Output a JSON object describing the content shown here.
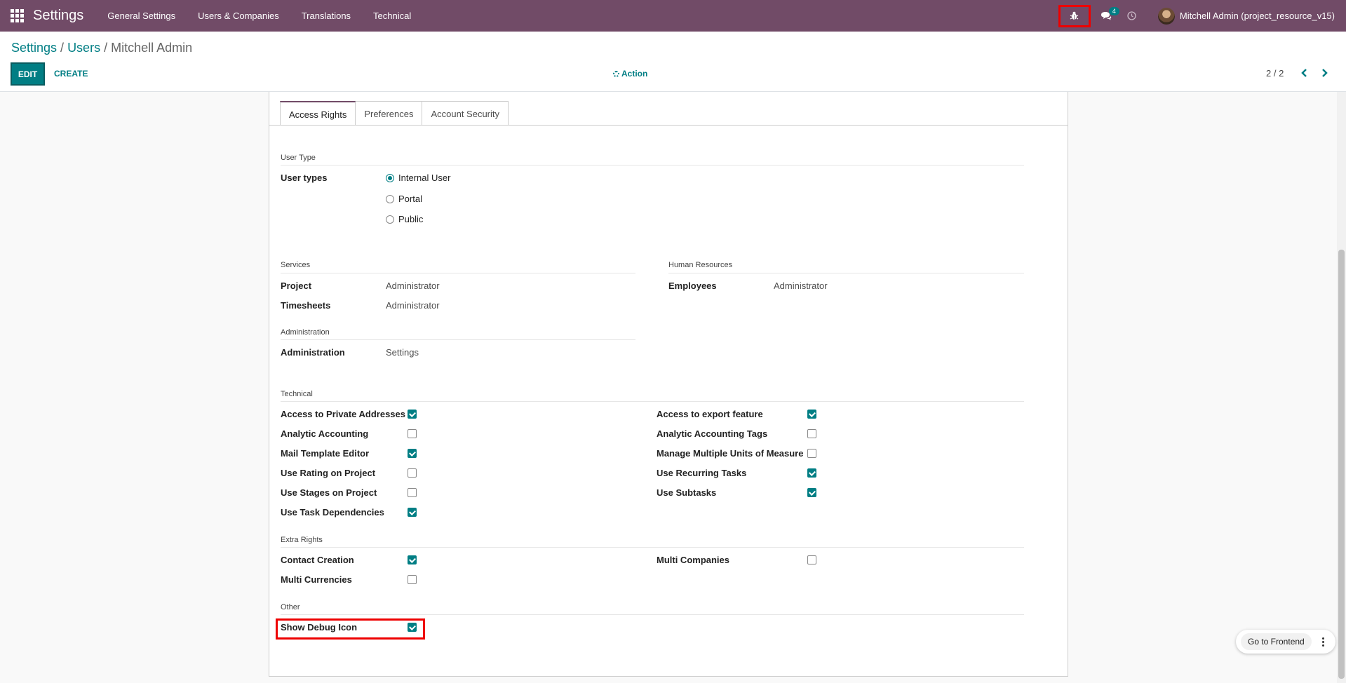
{
  "navbar": {
    "app_title": "Settings",
    "menu": [
      "General Settings",
      "Users & Companies",
      "Translations",
      "Technical"
    ],
    "chat_badge": "4",
    "user": "Mitchell Admin (project_resource_v15)",
    "bg_color": "#714B67"
  },
  "breadcrumb": {
    "root": "Settings",
    "middle": "Users",
    "current": "Mitchell Admin"
  },
  "control": {
    "edit": "EDIT",
    "create": "CREATE",
    "action": "Action",
    "pager": "2 / 2"
  },
  "tabs": [
    "Access Rights",
    "Preferences",
    "Account Security"
  ],
  "user_type": {
    "section": "User Type",
    "label": "User types",
    "options": [
      {
        "label": "Internal User",
        "selected": true
      },
      {
        "label": "Portal",
        "selected": false
      },
      {
        "label": "Public",
        "selected": false
      }
    ]
  },
  "services": {
    "section": "Services",
    "rows": [
      {
        "label": "Project",
        "value": "Administrator"
      },
      {
        "label": "Timesheets",
        "value": "Administrator"
      }
    ]
  },
  "hr": {
    "section": "Human Resources",
    "rows": [
      {
        "label": "Employees",
        "value": "Administrator"
      }
    ]
  },
  "administration": {
    "section": "Administration",
    "rows": [
      {
        "label": "Administration",
        "value": "Settings"
      }
    ]
  },
  "technical": {
    "section": "Technical",
    "left": [
      {
        "label": "Access to Private Addresses",
        "checked": true
      },
      {
        "label": "Analytic Accounting",
        "checked": false
      },
      {
        "label": "Mail Template Editor",
        "checked": true
      },
      {
        "label": "Use Rating on Project",
        "checked": false
      },
      {
        "label": "Use Stages on Project",
        "checked": false
      },
      {
        "label": "Use Task Dependencies",
        "checked": true
      }
    ],
    "right": [
      {
        "label": "Access to export feature",
        "checked": true
      },
      {
        "label": "Analytic Accounting Tags",
        "checked": false
      },
      {
        "label": "Manage Multiple Units of Measure",
        "checked": false
      },
      {
        "label": "Use Recurring Tasks",
        "checked": true
      },
      {
        "label": "Use Subtasks",
        "checked": true
      }
    ]
  },
  "extra": {
    "section": "Extra Rights",
    "left": [
      {
        "label": "Contact Creation",
        "checked": true
      },
      {
        "label": "Multi Currencies",
        "checked": false
      }
    ],
    "right": [
      {
        "label": "Multi Companies",
        "checked": false
      }
    ]
  },
  "other": {
    "section": "Other",
    "rows": [
      {
        "label": "Show Debug Icon",
        "checked": true
      }
    ]
  },
  "frontend": {
    "label": "Go to Frontend"
  }
}
